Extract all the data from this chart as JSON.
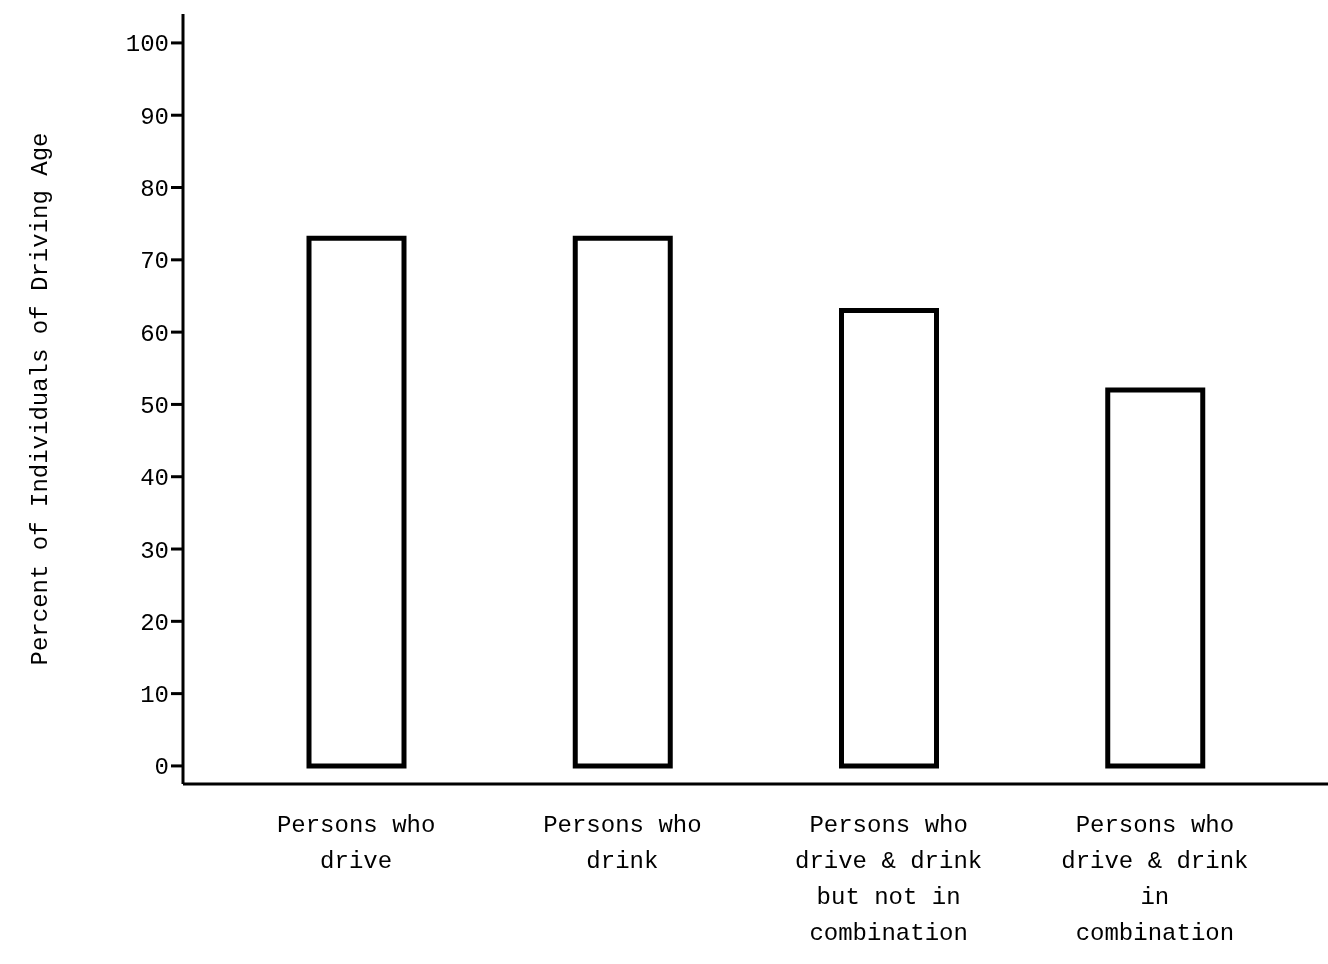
{
  "chart_data": {
    "type": "bar",
    "ylabel": "Percent of Individuals of Driving Age",
    "categories": [
      "Persons who drive",
      "Persons who drink",
      "Persons who drive & drink but not in combination",
      "Persons who drive & drink in combination"
    ],
    "values": [
      73,
      73,
      63,
      52
    ],
    "color": "#000000",
    "ylim": [
      -2.5,
      104
    ],
    "yticks": [
      0,
      10,
      20,
      30,
      40,
      50,
      60,
      70,
      80,
      90,
      100
    ],
    "grid": false
  }
}
